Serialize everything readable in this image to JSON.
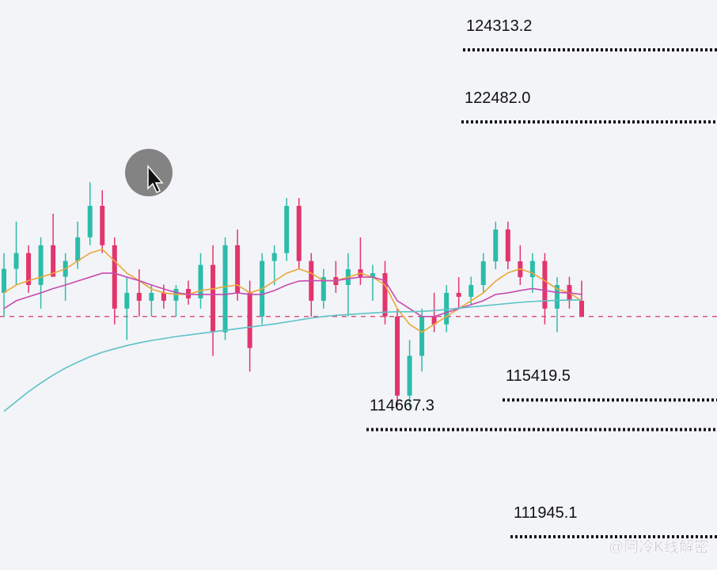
{
  "chart_data": {
    "type": "candlestick",
    "colors": {
      "up": "#2bbcaa",
      "down": "#e2356c",
      "current": "#d9577b"
    },
    "ylim": [
      111100,
      125580
    ],
    "open": [
      118140,
      118750,
      119150,
      118340,
      119350,
      118550,
      118950,
      119550,
      120350,
      119350,
      117740,
      118140,
      117940,
      118140,
      117940,
      118240,
      118000,
      118850,
      117140,
      119350,
      118140,
      117540,
      118950,
      119150,
      120350,
      118950,
      117940,
      118540,
      118340,
      118740,
      118540,
      118640,
      117540,
      115530,
      116540,
      117540,
      117340,
      118140,
      118040,
      118340,
      118940,
      119750,
      118940,
      118540,
      118950,
      117740,
      118340,
      117940
    ],
    "high": [
      119150,
      119950,
      119350,
      119550,
      120150,
      119150,
      119950,
      120950,
      120750,
      119550,
      118550,
      118740,
      118340,
      118350,
      118340,
      118450,
      119150,
      119350,
      119550,
      119750,
      118450,
      119150,
      119350,
      120550,
      120550,
      119150,
      118750,
      118950,
      119150,
      119550,
      118850,
      118950,
      117740,
      116940,
      117740,
      118140,
      118340,
      118540,
      118550,
      119150,
      119950,
      119950,
      119350,
      119150,
      119150,
      118540,
      118550,
      118450
    ],
    "low": [
      117540,
      118340,
      118140,
      117740,
      118550,
      117940,
      118750,
      119350,
      119150,
      117340,
      116940,
      117540,
      117540,
      117740,
      117540,
      117840,
      117740,
      116540,
      116940,
      117940,
      116140,
      117340,
      118340,
      118950,
      118750,
      117540,
      117740,
      118140,
      117540,
      118340,
      117940,
      117340,
      115230,
      115230,
      116140,
      117140,
      117140,
      117740,
      117840,
      118140,
      118740,
      118740,
      118340,
      118140,
      117340,
      117140,
      117740,
      117540
    ],
    "close": [
      118750,
      119150,
      118340,
      119350,
      118550,
      118950,
      119550,
      120350,
      119350,
      117740,
      118140,
      117940,
      118140,
      117940,
      118240,
      118000,
      118850,
      117140,
      119350,
      118140,
      116740,
      118950,
      119150,
      120350,
      118950,
      117940,
      118540,
      118340,
      118740,
      118540,
      118640,
      117540,
      115530,
      116540,
      117540,
      117340,
      118140,
      118040,
      118340,
      118940,
      119750,
      118940,
      118540,
      118950,
      117740,
      118340,
      117940,
      117540
    ],
    "series": [
      {
        "color": "#e9a93a",
        "values": [
          118140,
          118340,
          118450,
          118540,
          118640,
          118750,
          118950,
          119150,
          119250,
          118950,
          118640,
          118450,
          118240,
          118140,
          118100,
          118100,
          118200,
          118240,
          118300,
          118340,
          118140,
          118240,
          118440,
          118640,
          118750,
          118640,
          118450,
          118450,
          118540,
          118640,
          118540,
          118340,
          117740,
          117340,
          117140,
          117340,
          117540,
          117740,
          117940,
          118140,
          118440,
          118650,
          118750,
          118640,
          118450,
          118240,
          118140,
          117940
        ]
      },
      {
        "color": "#c64bb0",
        "values": [
          117740,
          117940,
          118040,
          118140,
          118250,
          118340,
          118440,
          118540,
          118640,
          118640,
          118540,
          118450,
          118340,
          118240,
          118150,
          118100,
          118100,
          118100,
          118100,
          118140,
          118100,
          118100,
          118200,
          118340,
          118440,
          118450,
          118450,
          118450,
          118500,
          118540,
          118540,
          118450,
          117940,
          117740,
          117540,
          117540,
          117640,
          117740,
          117840,
          117940,
          118100,
          118140,
          118200,
          118250,
          118200,
          118150,
          118140,
          118100
        ]
      },
      {
        "color": "#5cc3c6",
        "values": [
          115130,
          115380,
          115630,
          115850,
          116050,
          116230,
          116380,
          116520,
          116630,
          116720,
          116800,
          116870,
          116930,
          116980,
          117030,
          117070,
          117110,
          117150,
          117190,
          117230,
          117270,
          117310,
          117350,
          117400,
          117450,
          117500,
          117540,
          117570,
          117590,
          117610,
          117630,
          117650,
          117660,
          117660,
          117670,
          117690,
          117720,
          117750,
          117780,
          117810,
          117840,
          117870,
          117900,
          117920,
          117940,
          117950,
          117960,
          117960
        ]
      }
    ],
    "current_price": 117540,
    "levels": [
      {
        "value": 124313.2,
        "label": "124313.2"
      },
      {
        "value": 122482,
        "label": "122482.0"
      },
      {
        "value": 115419.5,
        "label": "115419.5"
      },
      {
        "value": 114667.3,
        "label": "114667.3"
      },
      {
        "value": 111945.1,
        "label": "111945.1"
      }
    ]
  },
  "watermark": "@阿冷K线解密"
}
